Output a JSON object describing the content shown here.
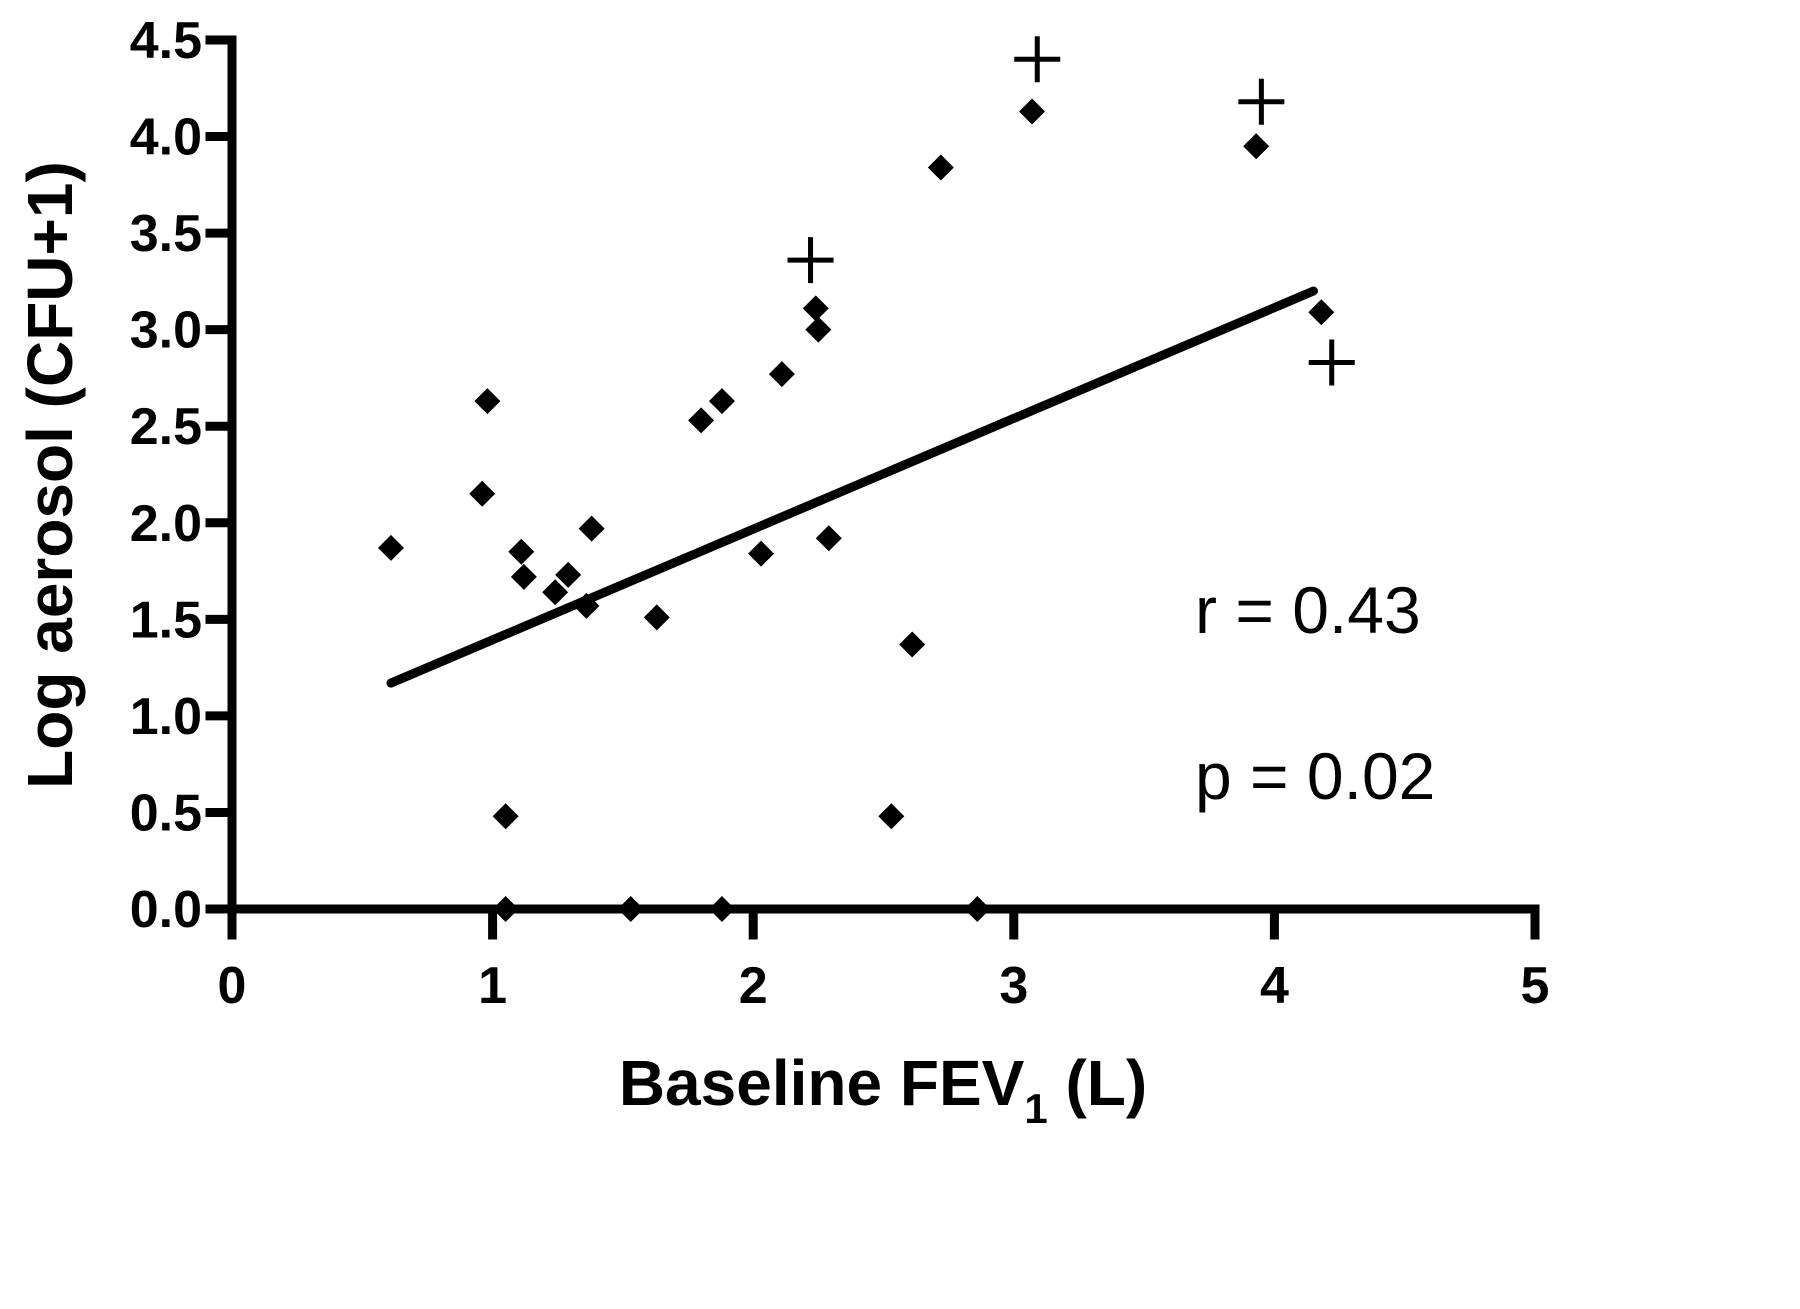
{
  "chart_data": {
    "type": "scatter",
    "title": "",
    "xlabel": "Baseline FEV",
    "xlabel_subscript": "1",
    "xlabel_suffix": " (L)",
    "ylabel": "Log aerosol (CFU+1)",
    "xlim": [
      0,
      5
    ],
    "ylim": [
      0,
      4.5
    ],
    "x_ticks": [
      0,
      1,
      2,
      3,
      4,
      5
    ],
    "x_tick_labels": [
      "0",
      "1",
      "2",
      "3",
      "4",
      "5"
    ],
    "y_ticks": [
      0,
      0.5,
      1,
      1.5,
      2,
      2.5,
      3,
      3.5,
      4,
      4.5
    ],
    "y_tick_labels": [
      "0.0",
      "0.5",
      "1.0",
      "1.5",
      "2.0",
      "2.5",
      "3.0",
      "3.5",
      "4.0",
      "4.5"
    ],
    "grid": false,
    "legend": "none",
    "series": [
      {
        "marker": "diamond",
        "points": [
          {
            "x": 0.61,
            "y": 1.87
          },
          {
            "x": 0.96,
            "y": 2.15
          },
          {
            "x": 0.98,
            "y": 2.63
          },
          {
            "x": 1.05,
            "y": 0.48
          },
          {
            "x": 1.05,
            "y": 0.0
          },
          {
            "x": 1.11,
            "y": 1.85
          },
          {
            "x": 1.12,
            "y": 1.72
          },
          {
            "x": 1.24,
            "y": 1.64
          },
          {
            "x": 1.29,
            "y": 1.73
          },
          {
            "x": 1.36,
            "y": 1.57
          },
          {
            "x": 1.38,
            "y": 1.97
          },
          {
            "x": 1.53,
            "y": 0.0
          },
          {
            "x": 1.63,
            "y": 1.51
          },
          {
            "x": 1.8,
            "y": 2.53
          },
          {
            "x": 1.88,
            "y": 2.63
          },
          {
            "x": 1.88,
            "y": 0.0
          },
          {
            "x": 2.03,
            "y": 1.84
          },
          {
            "x": 2.11,
            "y": 2.77
          },
          {
            "x": 2.24,
            "y": 3.11
          },
          {
            "x": 2.25,
            "y": 3.0
          },
          {
            "x": 2.29,
            "y": 1.92
          },
          {
            "x": 2.53,
            "y": 0.48
          },
          {
            "x": 2.61,
            "y": 1.37
          },
          {
            "x": 2.72,
            "y": 3.84
          },
          {
            "x": 2.86,
            "y": 0.0
          },
          {
            "x": 3.07,
            "y": 4.13
          },
          {
            "x": 3.93,
            "y": 3.95
          },
          {
            "x": 4.18,
            "y": 3.09
          }
        ]
      },
      {
        "marker": "plus",
        "points": [
          {
            "x": 2.22,
            "y": 3.36
          },
          {
            "x": 3.09,
            "y": 4.4
          },
          {
            "x": 3.95,
            "y": 4.18
          },
          {
            "x": 4.22,
            "y": 2.83
          }
        ]
      }
    ],
    "regression_line": {
      "x": [
        0.61,
        4.15
      ],
      "y": [
        1.17,
        3.2
      ]
    },
    "annotations": [
      "r = 0.43",
      "p = 0.02"
    ]
  }
}
